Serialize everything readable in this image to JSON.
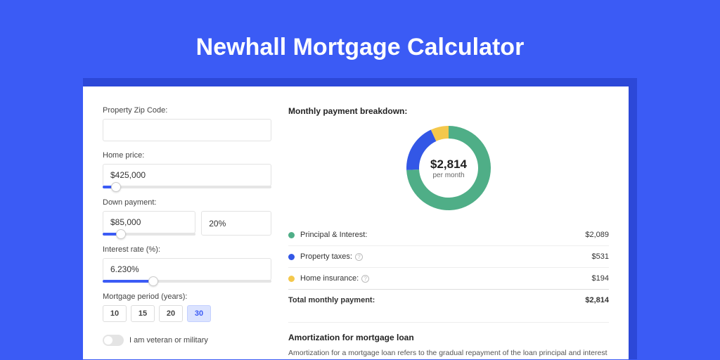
{
  "page": {
    "title": "Newhall Mortgage Calculator",
    "background_color": "#3b5bf5",
    "card_shadow_color": "#2c48d8"
  },
  "form": {
    "zip": {
      "label": "Property Zip Code:",
      "value": ""
    },
    "home_price": {
      "label": "Home price:",
      "value": "$425,000",
      "slider_pct": 8
    },
    "down_payment": {
      "label": "Down payment:",
      "value": "$85,000",
      "pct_value": "20%",
      "slider_pct": 20
    },
    "interest_rate": {
      "label": "Interest rate (%):",
      "value": "6.230%",
      "slider_pct": 30
    },
    "period": {
      "label": "Mortgage period (years):",
      "options": [
        "10",
        "15",
        "20",
        "30"
      ],
      "selected": "30"
    },
    "veteran": {
      "label": "I am veteran or military",
      "checked": false
    }
  },
  "breakdown": {
    "title": "Monthly payment breakdown:",
    "donut": {
      "amount": "$2,814",
      "sub": "per month",
      "slices": [
        {
          "color": "#4fae87",
          "value": 2089
        },
        {
          "color": "#3357e6",
          "value": 531
        },
        {
          "color": "#f4c84c",
          "value": 194
        }
      ],
      "ring_thickness": 18
    },
    "rows": [
      {
        "color": "#4fae87",
        "label": "Principal & Interest:",
        "value": "$2,089",
        "info": false
      },
      {
        "color": "#3357e6",
        "label": "Property taxes:",
        "value": "$531",
        "info": true
      },
      {
        "color": "#f4c84c",
        "label": "Home insurance:",
        "value": "$194",
        "info": true
      }
    ],
    "total": {
      "label": "Total monthly payment:",
      "value": "$2,814"
    }
  },
  "amortization": {
    "title": "Amortization for mortgage loan",
    "text": "Amortization for a mortgage loan refers to the gradual repayment of the loan principal and interest over a specified"
  }
}
